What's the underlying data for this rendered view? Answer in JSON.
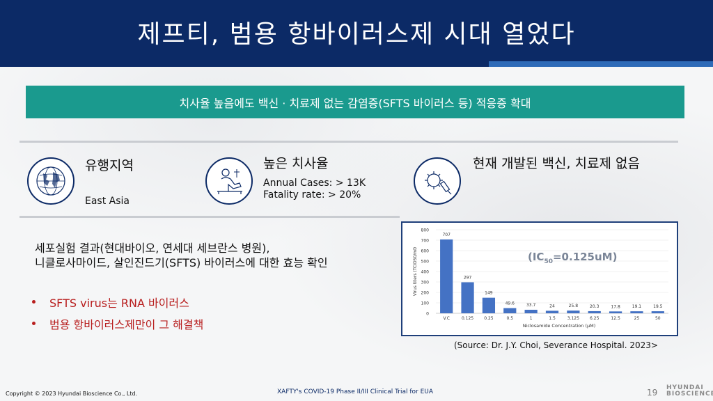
{
  "header": {
    "title": "제프티, 범용 항바이러스제 시대 열었다"
  },
  "banner": {
    "text": "치사율 높음에도 백신 · 치료제 없는 감염증(SFTS 바이러스 등) 적응증 확대"
  },
  "features": [
    {
      "title": "유행지역",
      "text": "East Asia",
      "icon": "globe-icon"
    },
    {
      "title": "높은 치사율",
      "lines": [
        "Annual Cases: > 13K",
        "Fatality rate: > 20%"
      ],
      "icon": "patient-bed-icon"
    },
    {
      "title": "현재 개발된 백신, 치료제 없음",
      "icon": "virus-syringe-icon"
    }
  ],
  "experiment": {
    "line1": "세포실험 결과(현대바이오, 연세대 세브란스 병원),",
    "line2": "니클로사마이드, 살인진드기(SFTS) 바이러스에 대한 효능 확인"
  },
  "bullets": [
    "SFTS virus는 RNA 바이러스",
    "범용 항바이러스제만이 그 해결책"
  ],
  "chart_data": {
    "type": "bar",
    "categories": [
      "V.C",
      "0.125",
      "0.25",
      "0.5",
      "1",
      "1.5",
      "3.125",
      "6.25",
      "12.5",
      "25",
      "50"
    ],
    "values": [
      707,
      297,
      149,
      49.6,
      33.7,
      24,
      25.8,
      20.3,
      17.8,
      19.1,
      19.5
    ],
    "value_labels": [
      "707",
      "297",
      "149",
      "49.6",
      "33.7",
      "24",
      "25.8",
      "20.3",
      "17.8",
      "19.1",
      "19.5"
    ],
    "ylim": [
      0,
      800
    ],
    "yticks": [
      0,
      100,
      200,
      300,
      400,
      500,
      600,
      700,
      800
    ],
    "ylabel": "Virus titers (TCID50/ml)",
    "xlabel": "Niclosamide Concentration (μM)",
    "annotation": {
      "prefix": "(IC",
      "sub": "50",
      "suffix": "=0.125uM)"
    },
    "bar_color": "#4472c4"
  },
  "source": "(Source: Dr. J.Y. Choi, Severance Hospital. 2023>",
  "footer": {
    "copyright": "Copyright © 2023 Hyundai Bioscience Co., Ltd.",
    "center": "XAFTY's COVID-19 Phase II/III Clinical Trial for EUA",
    "page": "19",
    "logo_line1": "HYUNDAI",
    "logo_line2": "BIOSCIENCE"
  },
  "colors": {
    "navy": "#0c2a66",
    "teal": "#1a9a8e",
    "accent_blue": "#2e6bb8",
    "bullet_red": "#b81e1e"
  }
}
